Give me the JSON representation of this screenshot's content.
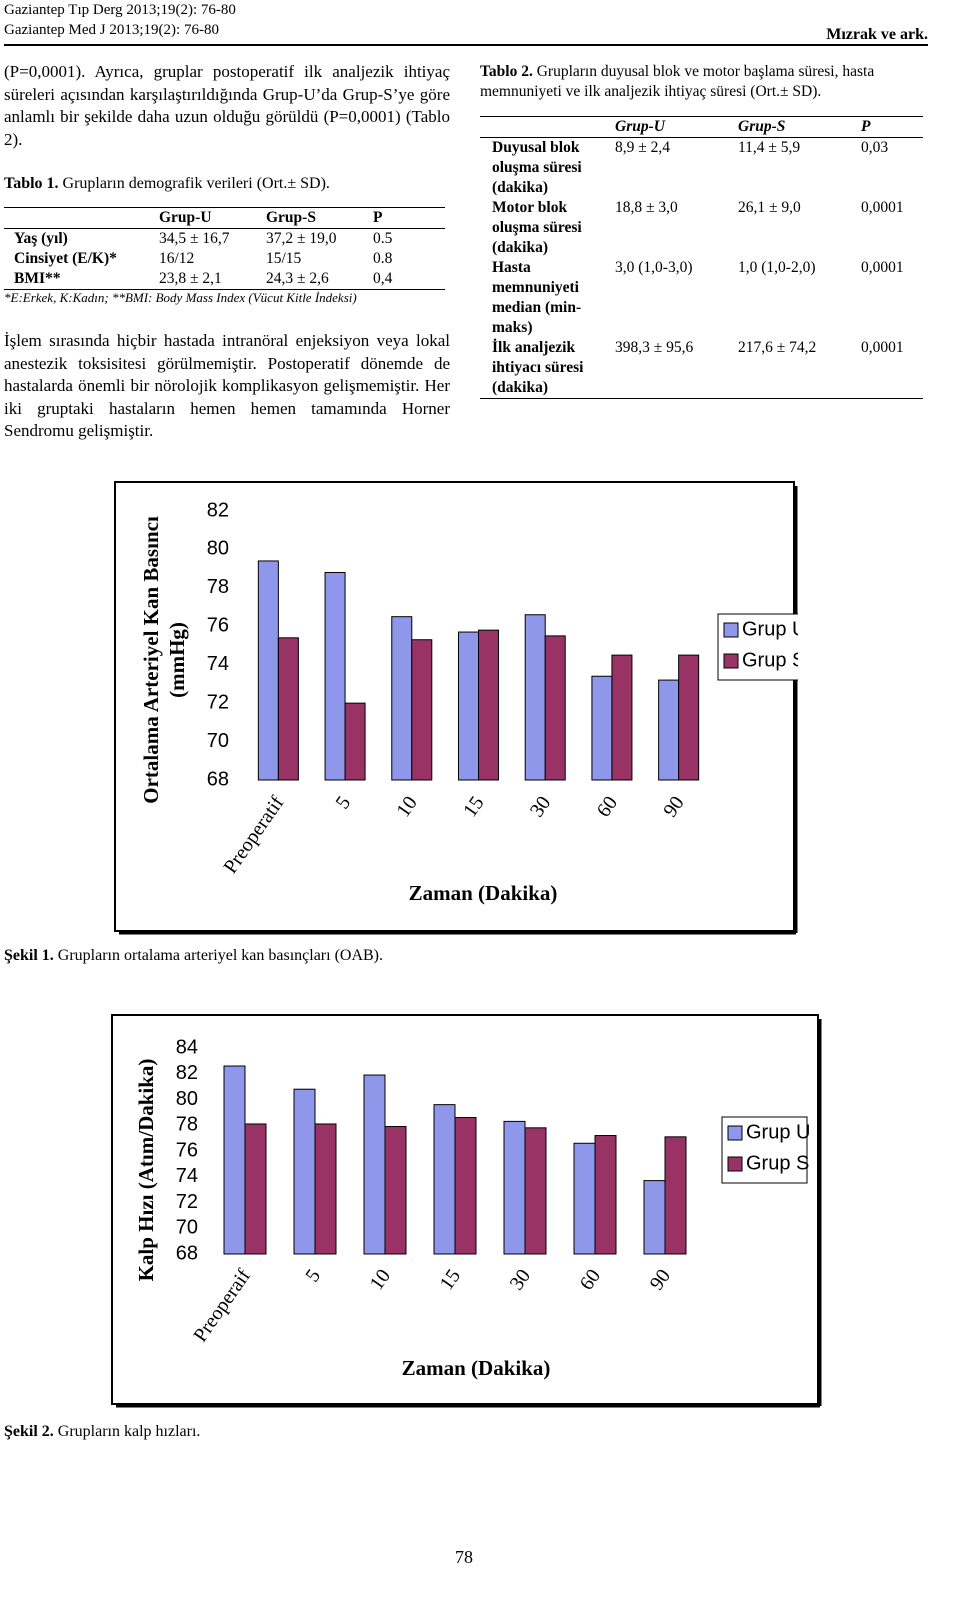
{
  "header": {
    "line1": "Gaziantep Tıp Derg 2013;19(2): 76-80",
    "line2": "Gaziantep Med J 2013;19(2): 76-80",
    "author": "Mızrak ve ark."
  },
  "paragraph1": "(P=0,0001). Ayrıca, gruplar postoperatif ilk analjezik ihtiyaç süreleri açısından karşılaştırıldığında Grup-U’da Grup-S’ye göre anlamlı bir şekilde daha uzun olduğu görüldü (P=0,0001) (Tablo 2).",
  "table1": {
    "label": "Tablo 1.",
    "caption": "Grupların demografik verileri (Ort.± SD).",
    "columns": [
      "Grup-U",
      "Grup-S",
      "P"
    ],
    "rows": [
      [
        "Yaş (yıl)",
        "34,5 ± 16,7",
        "37,2 ± 19,0",
        "0.5"
      ],
      [
        "Cinsiyet (E/K)*",
        "16/12",
        "15/15",
        "0.8"
      ],
      [
        "BMI**",
        "23,8 ± 2,1",
        "24,3 ± 2,6",
        "0,4"
      ]
    ],
    "note": "*E:Erkek, K:Kadın; **BMI: Body Mass Index (Vücut Kitle İndeksi)"
  },
  "paragraph2": "İşlem sırasında hiçbir hastada intranöral enjeksiyon veya lokal anestezik toksisitesi görülmemiştir. Postoperatif dönemde de hastalarda önemli bir nörolojik komplikasyon gelişmemiştir. Her iki gruptaki hastaların hemen hemen tamamında Horner Sendromu gelişmiştir.",
  "table2": {
    "label": "Tablo 2.",
    "caption": "Grupların duyusal blok ve motor başlama süresi, hasta memnuniyeti ve ilk analjezik ihtiyaç süresi (Ort.± SD).",
    "columns": [
      "Grup-U",
      "Grup-S",
      "P"
    ],
    "rows": [
      [
        "Duyusal blok oluşma süresi (dakika)",
        "8,9 ± 2,4",
        "11,4 ± 5,9",
        "0,03"
      ],
      [
        "Motor blok oluşma süresi (dakika)",
        "18,8 ± 3,0",
        "26,1 ± 9,0",
        "0,0001"
      ],
      [
        "Hasta memnuniyeti median (min-maks)",
        "3,0 (1,0-3,0)",
        "1,0 (1,0-2,0)",
        "0,0001"
      ],
      [
        "İlk analjezik ihtiyacı süresi (dakika)",
        "398,3 ± 95,6",
        "217,6 ± 74,2",
        "0,0001"
      ]
    ]
  },
  "chart_data": [
    {
      "type": "bar",
      "ylabel": [
        "Ortalama Arteriyel Kan Basıncı",
        "(mmHg)"
      ],
      "xlabel": "Zaman (Dakika)",
      "categories": [
        "Preoperatif",
        "5",
        "10",
        "15",
        "30",
        "60",
        "90"
      ],
      "series": [
        {
          "name": "Grup U",
          "color": "#8f97ea",
          "values": [
            79.4,
            78.8,
            76.5,
            75.7,
            76.6,
            73.4,
            73.2
          ]
        },
        {
          "name": "Grup S",
          "color": "#993366",
          "values": [
            75.4,
            72.0,
            75.3,
            75.8,
            75.5,
            74.5,
            74.5
          ]
        }
      ],
      "ylim": [
        68,
        82
      ],
      "yticks": [
        68,
        70,
        72,
        74,
        76,
        78,
        80,
        82
      ],
      "grid": false,
      "legend": "right"
    },
    {
      "type": "bar",
      "ylabel": [
        "Kalp Hızı (Atım/Dakika)"
      ],
      "xlabel": "Zaman (Dakika)",
      "categories": [
        "Preoperaif",
        "5",
        "10",
        "15",
        "30",
        "60",
        "90"
      ],
      "series": [
        {
          "name": "Grup U",
          "color": "#8f97ea",
          "values": [
            82.6,
            80.8,
            81.9,
            79.6,
            78.3,
            76.6,
            73.7
          ]
        },
        {
          "name": "Grup S",
          "color": "#993366",
          "values": [
            78.1,
            78.1,
            77.9,
            78.6,
            77.8,
            77.2,
            77.1
          ]
        }
      ],
      "ylim": [
        68,
        84
      ],
      "yticks": [
        68,
        70,
        72,
        74,
        76,
        78,
        80,
        82,
        84
      ],
      "grid": false,
      "legend": "right"
    }
  ],
  "figure1": {
    "label": "Şekil 1.",
    "caption": "Grupların ortalama arteriyel kan basınçları (OAB)."
  },
  "figure2": {
    "label": "Şekil 2.",
    "caption": "Grupların kalp hızları."
  },
  "page_number": "78"
}
